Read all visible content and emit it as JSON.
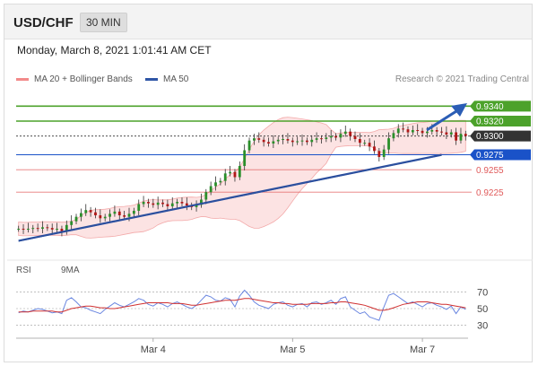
{
  "header": {
    "symbol": "USD/CHF",
    "timeframe": "30 MIN"
  },
  "datetime": "Monday, March 8, 2021 1:01:41 AM CET",
  "legend": {
    "ma20": "MA 20 + Bollinger Bands",
    "ma50": "MA 50",
    "credit": "Research © 2021 Trading Central"
  },
  "rsi_legend": {
    "rsi": "RSI",
    "ma9": "9MA"
  },
  "colors": {
    "resistance": "#4ca22b",
    "pivot": "#1a52c8",
    "support": "#e05a5a",
    "current": "#333333",
    "bollinger": "#f9c2c2",
    "ma50": "#2f56a6",
    "rsi": "#6a86e0",
    "ma9": "#d03030",
    "candle_up": "#2a8f2a",
    "candle_down": "#b01818"
  },
  "levels": [
    {
      "value": "0.9340",
      "type": "resistance"
    },
    {
      "value": "0.9320",
      "type": "resistance"
    },
    {
      "value": "0.9300",
      "type": "current"
    },
    {
      "value": "0.9275",
      "type": "pivot"
    },
    {
      "value": "0.9255",
      "type": "support"
    },
    {
      "value": "0.9225",
      "type": "support"
    }
  ],
  "chart_data": [
    {
      "type": "candlestick",
      "ylim": [
        0.914,
        0.9362
      ],
      "x_ticks": [
        "Mar 4",
        "Mar 5",
        "Mar 7"
      ],
      "price_series": {
        "name": "USD/CHF",
        "close": [
          0.9176,
          0.9175,
          0.9176,
          0.9177,
          0.9176,
          0.9178,
          0.9177,
          0.9175,
          0.9176,
          0.9172,
          0.9181,
          0.9186,
          0.9192,
          0.9197,
          0.9201,
          0.9198,
          0.9194,
          0.919,
          0.9192,
          0.9196,
          0.9199,
          0.9194,
          0.9192,
          0.9196,
          0.92,
          0.9209,
          0.9212,
          0.921,
          0.9208,
          0.9211,
          0.9209,
          0.9206,
          0.921,
          0.9212,
          0.921,
          0.9207,
          0.9205,
          0.9208,
          0.9215,
          0.9225,
          0.9233,
          0.9238,
          0.924,
          0.925,
          0.9252,
          0.9245,
          0.926,
          0.9281,
          0.9294,
          0.9297,
          0.9295,
          0.9292,
          0.929,
          0.9293,
          0.9295,
          0.9296,
          0.9294,
          0.9292,
          0.9293,
          0.9294,
          0.9292,
          0.9295,
          0.9297,
          0.9296,
          0.9298,
          0.93,
          0.9298,
          0.9303,
          0.9306,
          0.93,
          0.9296,
          0.9291,
          0.9291,
          0.9286,
          0.928,
          0.9272,
          0.9282,
          0.9297,
          0.9304,
          0.931,
          0.9309,
          0.9305,
          0.9308,
          0.9307,
          0.9304,
          0.9306,
          0.9308,
          0.9306,
          0.9305,
          0.9302,
          0.9305,
          0.9294,
          0.9303,
          0.93
        ]
      },
      "ma50_trend": [
        [
          0,
          0.9159
        ],
        [
          88,
          0.9274
        ]
      ],
      "support_trendline": [
        [
          0,
          0.916
        ],
        [
          88,
          0.9275
        ]
      ],
      "rsi": {
        "ylim": [
          20,
          80
        ],
        "ticks": [
          70,
          50,
          30
        ],
        "rsi": [
          45,
          47,
          46,
          48,
          50,
          49,
          47,
          45,
          46,
          44,
          60,
          63,
          58,
          52,
          51,
          48,
          46,
          44,
          49,
          53,
          57,
          54,
          52,
          55,
          58,
          62,
          60,
          55,
          53,
          57,
          55,
          52,
          56,
          58,
          55,
          52,
          50,
          54,
          60,
          66,
          64,
          60,
          59,
          63,
          61,
          52,
          65,
          72,
          66,
          58,
          54,
          52,
          50,
          55,
          57,
          58,
          54,
          52,
          55,
          56,
          52,
          57,
          58,
          55,
          57,
          60,
          55,
          62,
          64,
          52,
          48,
          44,
          46,
          40,
          38,
          36,
          52,
          66,
          68,
          64,
          60,
          56,
          58,
          55,
          52,
          56,
          57,
          54,
          52,
          49,
          53,
          44,
          52,
          49
        ],
        "ma9": [
          46,
          46,
          46,
          47,
          47,
          47,
          47,
          47,
          46,
          46,
          48,
          50,
          51,
          52,
          53,
          53,
          52,
          51,
          51,
          50,
          50,
          51,
          52,
          53,
          54,
          55,
          56,
          57,
          57,
          57,
          57,
          57,
          56,
          56,
          56,
          55,
          54,
          54,
          55,
          56,
          57,
          58,
          59,
          60,
          60,
          60,
          61,
          62,
          62,
          61,
          60,
          59,
          58,
          57,
          57,
          56,
          56,
          55,
          55,
          55,
          55,
          56,
          56,
          56,
          56,
          57,
          57,
          58,
          58,
          57,
          56,
          55,
          54,
          52,
          50,
          48,
          48,
          49,
          51,
          53,
          55,
          56,
          57,
          58,
          58,
          58,
          57,
          56,
          55,
          55,
          54,
          53,
          52,
          51
        ]
      }
    }
  ]
}
